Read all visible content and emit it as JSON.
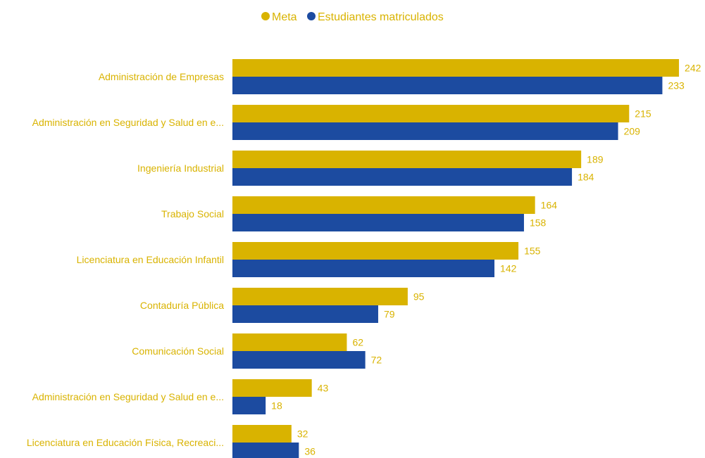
{
  "chart_data": {
    "type": "bar",
    "orientation": "horizontal",
    "categories": [
      "Administración de Empresas",
      "Administración en Seguridad y Salud en e...",
      "Ingeniería Industrial",
      "Trabajo Social",
      "Licenciatura en Educación Infantil",
      "Contaduría Pública",
      "Comunicación Social",
      "Administración en Seguridad y Salud en e...",
      "Licenciatura en Educación Física, Recreaci..."
    ],
    "series": [
      {
        "name": "Meta",
        "color": "#D9B300",
        "values": [
          242,
          215,
          189,
          164,
          155,
          95,
          62,
          43,
          32
        ]
      },
      {
        "name": "Estudiantes matriculados",
        "color": "#1C4BA0",
        "values": [
          233,
          209,
          184,
          158,
          142,
          79,
          72,
          18,
          36
        ]
      }
    ],
    "xlim": [
      0,
      250
    ],
    "grid": false,
    "legend_position": "top-center",
    "label_color": "#D9B300"
  }
}
